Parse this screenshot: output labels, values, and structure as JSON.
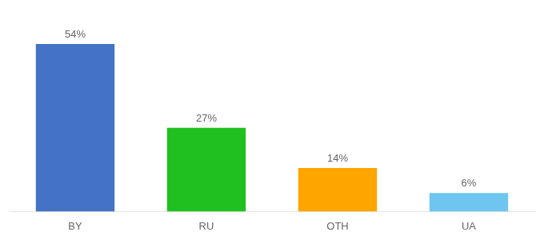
{
  "chart_data": {
    "type": "bar",
    "categories": [
      "BY",
      "RU",
      "OTH",
      "UA"
    ],
    "values": [
      54,
      27,
      14,
      6
    ],
    "value_labels": [
      "54%",
      "27%",
      "14%",
      "6%"
    ],
    "data_labels": true,
    "colors": [
      "#4472c4",
      "#21c021",
      "#ffa500",
      "#6ec6f0"
    ],
    "ylim": [
      0,
      62
    ],
    "grid": false,
    "tick_labels": "x"
  }
}
